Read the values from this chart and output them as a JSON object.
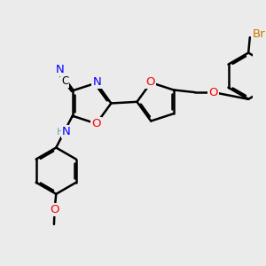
{
  "bg_color": "#ebebeb",
  "bond_color": "#000000",
  "bond_width": 1.8,
  "dbo": 0.055,
  "atom_colors": {
    "N": "#0000ff",
    "O": "#ff0000",
    "Br": "#cc7700",
    "C": "#000000",
    "H": "#5aaaaa"
  },
  "font_size": 8.5,
  "title": ""
}
